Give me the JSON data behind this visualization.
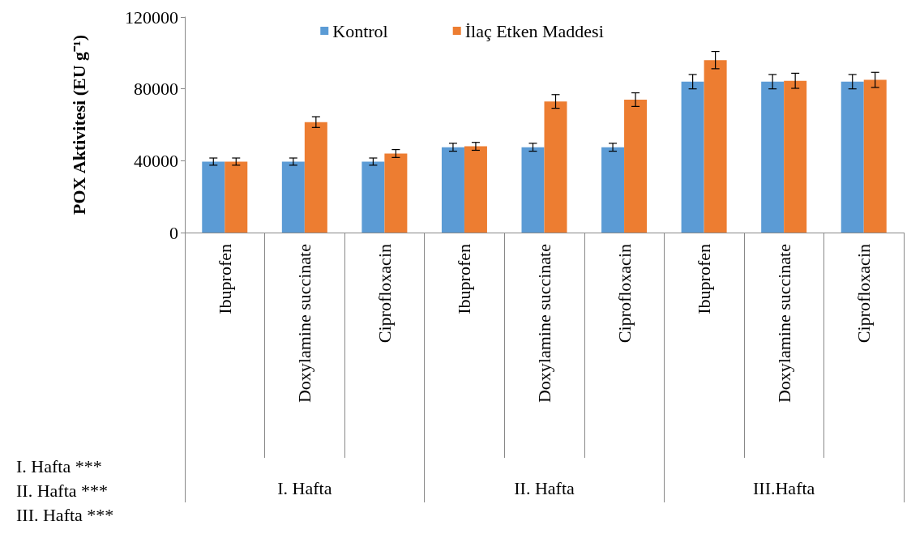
{
  "chart_data": {
    "type": "bar",
    "ylabel": "POX Aktivitesi (EU g⁻¹)",
    "categories": [
      "Ibuprofen",
      "Doxylamine succinate",
      "Ciprofloxacin",
      "Ibuprofen",
      "Doxylamine succinate",
      "Ciprofloxacin",
      "Ibuprofen",
      "Doxylamine succinate",
      "Ciprofloxacin"
    ],
    "series": [
      {
        "name": "Kontrol",
        "color": "#5b9bd5",
        "values": [
          39500,
          39500,
          39500,
          47500,
          47500,
          47500,
          84000,
          84000,
          84000
        ],
        "errors": [
          2000,
          2000,
          2000,
          2200,
          2200,
          2200,
          4000,
          4000,
          4000
        ]
      },
      {
        "name": "İlaç Etken Maddesi",
        "color": "#ed7d31",
        "values": [
          39500,
          61500,
          44000,
          48000,
          73000,
          74000,
          96000,
          84500,
          85000
        ],
        "errors": [
          2000,
          3000,
          2200,
          2200,
          3800,
          3800,
          4800,
          4200,
          4200
        ]
      }
    ],
    "ylim": [
      0,
      120000
    ],
    "yticks": [
      0,
      40000,
      80000,
      120000
    ],
    "grid": false,
    "legend": "top",
    "annotations": [
      "I. Hafta",
      "II. Hafta",
      "III.Hafta",
      "I. Hafta ***",
      "II. Hafta ***",
      "III. Hafta ***"
    ]
  }
}
